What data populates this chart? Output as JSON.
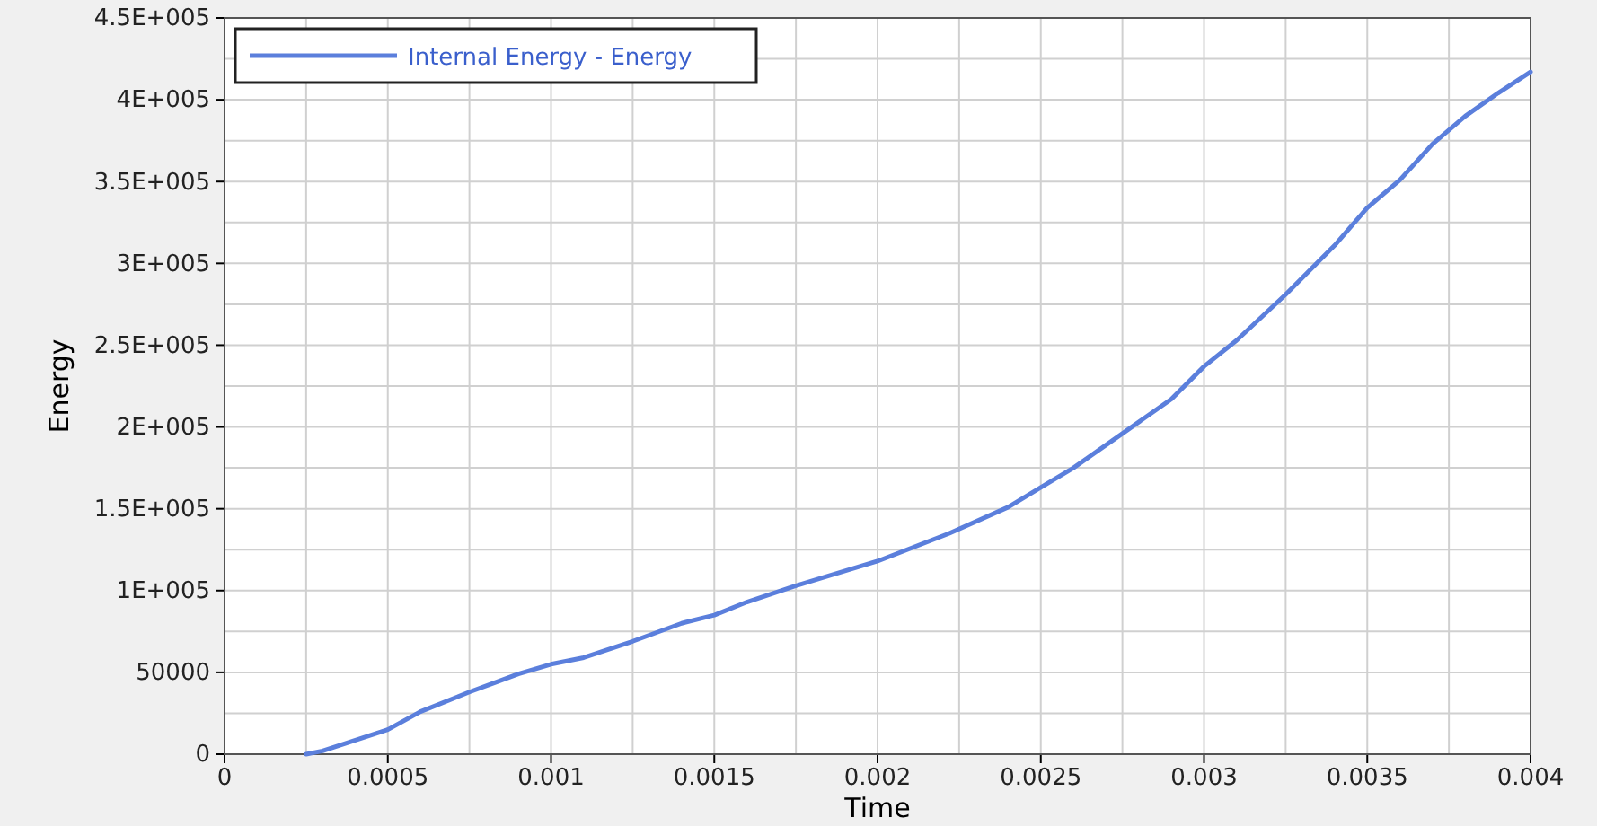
{
  "chart_data": {
    "type": "line",
    "xlabel": "Time",
    "ylabel": "Energy",
    "x": [
      0.00025,
      0.0003,
      0.0005,
      0.0006,
      0.00075,
      0.0009,
      0.001,
      0.0011,
      0.00125,
      0.0014,
      0.0015,
      0.0016,
      0.00175,
      0.002,
      0.00222,
      0.0024,
      0.0025,
      0.0026,
      0.00275,
      0.0029,
      0.003,
      0.0031,
      0.00325,
      0.0034,
      0.0035,
      0.0036,
      0.0037,
      0.0038,
      0.0039,
      0.004
    ],
    "series": [
      {
        "name": "Internal Energy - Energy",
        "color": "#5b7fdc",
        "values": [
          0,
          2000,
          15000,
          26000,
          38000,
          49000,
          55000,
          59000,
          69000,
          80000,
          85000,
          93000,
          103000,
          118000,
          135000,
          151000,
          163000,
          175000,
          196000,
          217000,
          237000,
          253000,
          281000,
          311000,
          334000,
          351000,
          373000,
          390000,
          404000,
          417000
        ]
      }
    ],
    "xlim": [
      0,
      0.004
    ],
    "xticks": [
      0,
      {
        "value": 0.00025,
        "label": null
      },
      0.0005,
      {
        "value": 0.00075,
        "label": null
      },
      0.001,
      {
        "value": 0.00125,
        "label": null
      },
      0.0015,
      {
        "value": 0.00175,
        "label": null
      },
      0.002,
      {
        "value": 0.00225,
        "label": null
      },
      0.0025,
      {
        "value": 0.00275,
        "label": null
      },
      0.003,
      {
        "value": 0.00325,
        "label": null
      },
      0.0035,
      {
        "value": 0.00375,
        "label": null
      },
      0.004
    ],
    "ylim": [
      0,
      450000
    ],
    "yticks": [
      0,
      {
        "value": 25000,
        "label": null
      },
      50000,
      {
        "value": 75000,
        "label": null
      },
      {
        "value": 100000,
        "label": "1E+005"
      },
      {
        "value": 125000,
        "label": null
      },
      {
        "value": 150000,
        "label": "1.5E+005"
      },
      {
        "value": 175000,
        "label": null
      },
      {
        "value": 200000,
        "label": "2E+005"
      },
      {
        "value": 225000,
        "label": null
      },
      {
        "value": 250000,
        "label": "2.5E+005"
      },
      {
        "value": 275000,
        "label": null
      },
      {
        "value": 300000,
        "label": "3E+005"
      },
      {
        "value": 325000,
        "label": null
      },
      {
        "value": 350000,
        "label": "3.5E+005"
      },
      {
        "value": 375000,
        "label": null
      },
      {
        "value": 400000,
        "label": "4E+005"
      },
      {
        "value": 425000,
        "label": null
      },
      {
        "value": 450000,
        "label": "4.5E+005"
      }
    ],
    "grid": true,
    "legend": "top left",
    "marker": "none",
    "line_style": "solid"
  }
}
